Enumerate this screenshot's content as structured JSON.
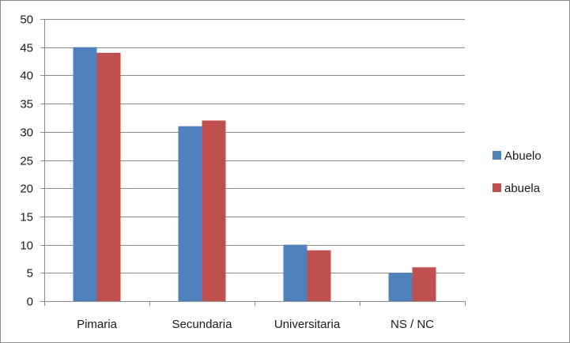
{
  "chart_data": {
    "type": "bar",
    "title": "",
    "xlabel": "",
    "ylabel": "",
    "categories": [
      "Pimaria",
      "Secundaria",
      "Universitaria",
      "NS / NC"
    ],
    "series": [
      {
        "name": "Abuelo",
        "color": "#4f81bd",
        "values": [
          45,
          31,
          10,
          5
        ]
      },
      {
        "name": "abuela",
        "color": "#c0504d",
        "values": [
          44,
          32,
          9,
          6
        ]
      }
    ],
    "ylim": [
      0,
      50
    ],
    "yticks": [
      0,
      5,
      10,
      15,
      20,
      25,
      30,
      35,
      40,
      45,
      50
    ],
    "grid": true,
    "legend": "right"
  }
}
